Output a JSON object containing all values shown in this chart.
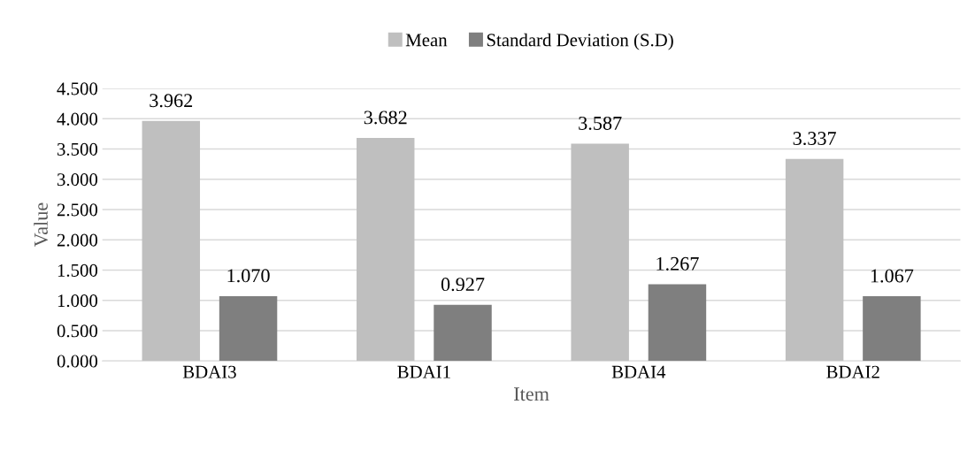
{
  "chart_data": {
    "type": "bar",
    "xlabel": "Item",
    "ylabel": "Value",
    "categories": [
      "BDAI3",
      "BDAI1",
      "BDAI4",
      "BDAI2"
    ],
    "series": [
      {
        "name": "Mean",
        "color": "#bfbfbf",
        "values": [
          3.962,
          3.682,
          3.587,
          3.337
        ],
        "value_labels": [
          "3.962",
          "3.682",
          "3.587",
          "3.337"
        ]
      },
      {
        "name": "Standard Deviation (S.D)",
        "color": "#7f7f7f",
        "values": [
          1.07,
          0.927,
          1.267,
          1.067
        ],
        "value_labels": [
          "1.070",
          "0.927",
          "1.267",
          "1.067"
        ]
      }
    ],
    "ylim": [
      0,
      4.5
    ],
    "yticks": [
      {
        "value": 0,
        "label": "0.000"
      },
      {
        "value": 0.5,
        "label": "0.500"
      },
      {
        "value": 1,
        "label": "1.000"
      },
      {
        "value": 1.5,
        "label": "1.500"
      },
      {
        "value": 2,
        "label": "2.000"
      },
      {
        "value": 2.5,
        "label": "2.500"
      },
      {
        "value": 3,
        "label": "3.000"
      },
      {
        "value": 3.5,
        "label": "3.500"
      },
      {
        "value": 4,
        "label": "4.000"
      },
      {
        "value": 4.5,
        "label": "4.500"
      }
    ],
    "grid": "y",
    "legend": "top"
  }
}
